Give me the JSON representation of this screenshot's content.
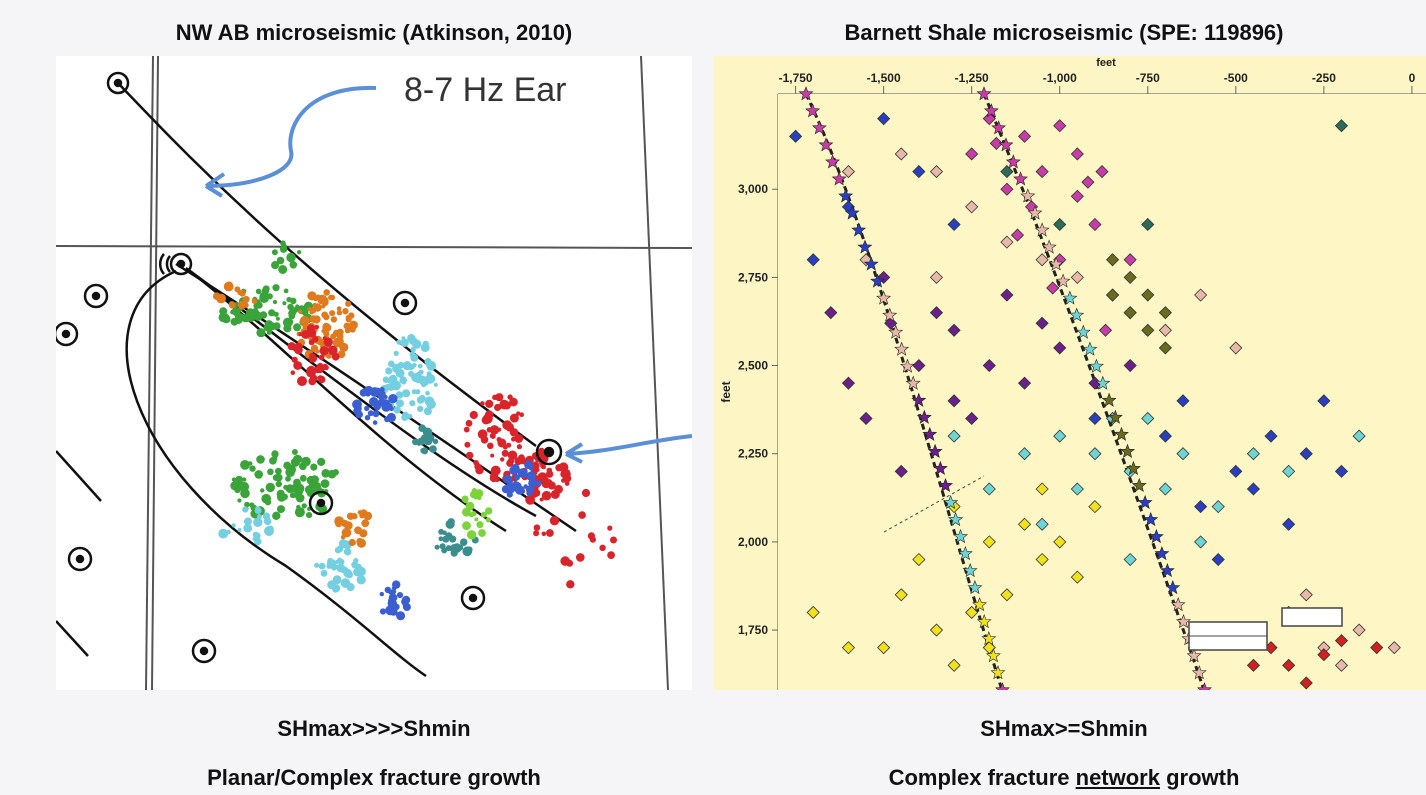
{
  "left": {
    "title": "NW AB microseismic (Atkinson, 2010)",
    "annotation": "8-7 Hz Ear",
    "caption1": "SHmax>>>>Shmin",
    "caption2": "Planar/Complex fracture growth",
    "colors": {
      "green": "#3aa33a",
      "orange": "#e07a1e",
      "red": "#d8242a",
      "cyan": "#74cfe0",
      "blue": "#3b5fd0",
      "teal": "#3a8e8e",
      "lime": "#7cd33a",
      "arrow": "#5b8fd6"
    }
  },
  "right": {
    "title": "Barnett Shale microseismic (SPE: 119896)",
    "caption1": "SHmax>=Shmin",
    "caption2_pre": "Complex fracture ",
    "caption2_u": "network",
    "caption2_post": " growth",
    "chart_data": {
      "type": "scatter",
      "xlabel": "feet",
      "ylabel": "feet",
      "xlim": [
        -1800,
        40
      ],
      "ylim": [
        1580,
        3270
      ],
      "x_ticks": [
        -1750,
        -1500,
        -1250,
        -1000,
        -750,
        -500,
        -250,
        0
      ],
      "x_tick_labels": [
        "-1,750",
        "-1,500",
        "-1,250",
        "-1,000",
        "-750",
        "-500",
        "-250",
        "0"
      ],
      "y_ticks": [
        3000,
        2750,
        2500,
        2250,
        2000,
        1750
      ],
      "y_tick_labels": [
        "3,000",
        "2,750",
        "2,500",
        "2,250",
        "2,000",
        "1,750"
      ],
      "background": "#fdf6c4",
      "series": [
        {
          "color": "#c83ca8",
          "values": [
            [
              -1200,
              3200
            ],
            [
              -1100,
              3150
            ],
            [
              -1050,
              3050
            ],
            [
              -950,
              3100
            ],
            [
              -900,
              2900
            ],
            [
              -1000,
              2800
            ],
            [
              -850,
              2700
            ],
            [
              -1150,
              3000
            ],
            [
              -1250,
              3100
            ],
            [
              -1000,
              3180
            ],
            [
              -880,
              3050
            ],
            [
              -1080,
              2950
            ],
            [
              -800,
              2800
            ],
            [
              -1120,
              2870
            ],
            [
              -950,
              2980
            ],
            [
              -1020,
              2720
            ],
            [
              -1180,
              3130
            ],
            [
              -870,
              2600
            ],
            [
              -920,
              3020
            ]
          ]
        },
        {
          "color": "#6a1f8a",
          "values": [
            [
              -1500,
              2750
            ],
            [
              -1300,
              2600
            ],
            [
              -1200,
              2500
            ],
            [
              -1100,
              2450
            ],
            [
              -1000,
              2550
            ],
            [
              -1400,
              2500
            ],
            [
              -1550,
              2350
            ],
            [
              -1450,
              2200
            ],
            [
              -1250,
              2350
            ],
            [
              -900,
              2450
            ],
            [
              -1350,
              2650
            ],
            [
              -1150,
              2700
            ],
            [
              -1050,
              2620
            ],
            [
              -1650,
              2650
            ],
            [
              -1600,
              2450
            ],
            [
              -1300,
              2400
            ],
            [
              -800,
              2500
            ],
            [
              -1480,
              2620
            ]
          ]
        },
        {
          "color": "#2a3fbf",
          "values": [
            [
              -1750,
              3150
            ],
            [
              -1500,
              3200
            ],
            [
              -1400,
              3050
            ],
            [
              -1600,
              2950
            ],
            [
              -900,
              2350
            ],
            [
              -700,
              2300
            ],
            [
              -500,
              2200
            ],
            [
              -400,
              2300
            ],
            [
              -300,
              2250
            ],
            [
              -250,
              2400
            ],
            [
              -600,
              2100
            ],
            [
              -450,
              2150
            ],
            [
              -550,
              1950
            ],
            [
              -1300,
              2900
            ],
            [
              -1700,
              2800
            ],
            [
              -350,
              2050
            ],
            [
              -200,
              2200
            ],
            [
              -650,
              2400
            ]
          ]
        },
        {
          "color": "#6fd4d4",
          "values": [
            [
              -1000,
              2300
            ],
            [
              -900,
              2250
            ],
            [
              -800,
              2200
            ],
            [
              -700,
              2150
            ],
            [
              -850,
              2350
            ],
            [
              -950,
              2150
            ],
            [
              -1100,
              2250
            ],
            [
              -750,
              2350
            ],
            [
              -650,
              2250
            ],
            [
              -600,
              2000
            ],
            [
              -550,
              2100
            ],
            [
              -450,
              2250
            ],
            [
              -1050,
              2050
            ],
            [
              -800,
              1950
            ],
            [
              -350,
              2200
            ],
            [
              -150,
              2300
            ],
            [
              -1300,
              2300
            ],
            [
              -1200,
              2150
            ]
          ]
        },
        {
          "color": "#f1e21c",
          "values": [
            [
              -1300,
              2100
            ],
            [
              -1200,
              2000
            ],
            [
              -1100,
              2050
            ],
            [
              -1000,
              2000
            ],
            [
              -950,
              1900
            ],
            [
              -1150,
              1850
            ],
            [
              -1250,
              1800
            ],
            [
              -1350,
              1750
            ],
            [
              -1450,
              1850
            ],
            [
              -1050,
              1950
            ],
            [
              -1500,
              1700
            ],
            [
              -1600,
              1700
            ],
            [
              -1400,
              1950
            ],
            [
              -1050,
              2150
            ],
            [
              -1700,
              1800
            ],
            [
              -1200,
              1700
            ],
            [
              -1300,
              1650
            ],
            [
              -900,
              2100
            ]
          ]
        },
        {
          "color": "#e8b8a8",
          "values": [
            [
              -1450,
              3100
            ],
            [
              -1350,
              3050
            ],
            [
              -1250,
              2950
            ],
            [
              -1150,
              2850
            ],
            [
              -1050,
              2800
            ],
            [
              -950,
              2750
            ],
            [
              -800,
              2650
            ],
            [
              -700,
              2600
            ],
            [
              -600,
              2700
            ],
            [
              -500,
              2550
            ],
            [
              -350,
              1800
            ],
            [
              -250,
              1700
            ],
            [
              -150,
              1750
            ],
            [
              -50,
              1700
            ],
            [
              -300,
              1850
            ],
            [
              -200,
              1650
            ],
            [
              -1550,
              2800
            ],
            [
              -1350,
              2750
            ],
            [
              -1600,
              3050
            ],
            [
              -450,
              1750
            ]
          ]
        },
        {
          "color": "#6b6b1f",
          "values": [
            [
              -850,
              2700
            ],
            [
              -800,
              2650
            ],
            [
              -750,
              2600
            ],
            [
              -700,
              2650
            ],
            [
              -800,
              2750
            ],
            [
              -750,
              2700
            ],
            [
              -850,
              2800
            ],
            [
              -700,
              2550
            ]
          ]
        },
        {
          "color": "#cf2121",
          "values": [
            [
              -400,
              1700
            ],
            [
              -350,
              1650
            ],
            [
              -300,
              1600
            ],
            [
              -250,
              1680
            ],
            [
              -450,
              1650
            ],
            [
              -200,
              1720
            ],
            [
              -100,
              1700
            ],
            [
              -500,
              1750
            ]
          ]
        },
        {
          "color": "#2b6b5a",
          "values": [
            [
              -1150,
              3050
            ],
            [
              -1000,
              2900
            ],
            [
              -200,
              3180
            ],
            [
              -750,
              2900
            ]
          ]
        }
      ]
    }
  }
}
